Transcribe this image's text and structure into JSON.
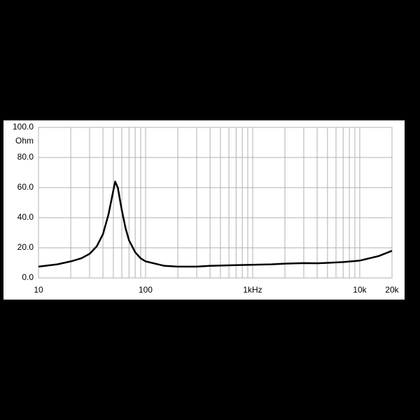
{
  "chart_data": {
    "type": "line",
    "y_label": "Ohm",
    "x": [
      10,
      15,
      20,
      25,
      30,
      35,
      40,
      45,
      50,
      52,
      55,
      60,
      65,
      70,
      80,
      90,
      100,
      150,
      200,
      300,
      400,
      500,
      700,
      1000,
      1500,
      2000,
      3000,
      4000,
      5000,
      7000,
      10000,
      15000,
      20000
    ],
    "values": [
      7.5,
      9,
      11,
      13,
      16,
      21,
      29,
      42,
      58,
      64,
      60,
      45,
      33,
      25,
      17,
      13,
      11,
      8,
      7.5,
      7.5,
      8,
      8.2,
      8.5,
      8.7,
      9,
      9.5,
      9.8,
      9.7,
      10,
      10.5,
      11.5,
      14.5,
      18
    ],
    "color": "#000000",
    "xlog": true,
    "xlim": [
      10,
      20000
    ],
    "xticks": [
      10,
      100,
      {
        "value": 1000,
        "label": "1kHz"
      },
      {
        "value": 10000,
        "label": "10k"
      },
      {
        "value": 20000,
        "label": "20k"
      }
    ],
    "xminorticks": [
      20,
      30,
      40,
      50,
      60,
      70,
      80,
      90,
      200,
      300,
      400,
      500,
      600,
      700,
      800,
      900,
      2000,
      3000,
      4000,
      5000,
      6000,
      7000,
      8000,
      9000
    ],
    "ylim": [
      0,
      100
    ],
    "yticks": [
      {
        "value": 0,
        "label": "0.0"
      },
      {
        "value": 20,
        "label": "20.0"
      },
      {
        "value": 40,
        "label": "40.0"
      },
      {
        "value": 60,
        "label": "60.0"
      },
      {
        "value": 80,
        "label": "80.0"
      },
      {
        "value": 100,
        "label": "100.0"
      }
    ],
    "grid": true
  }
}
